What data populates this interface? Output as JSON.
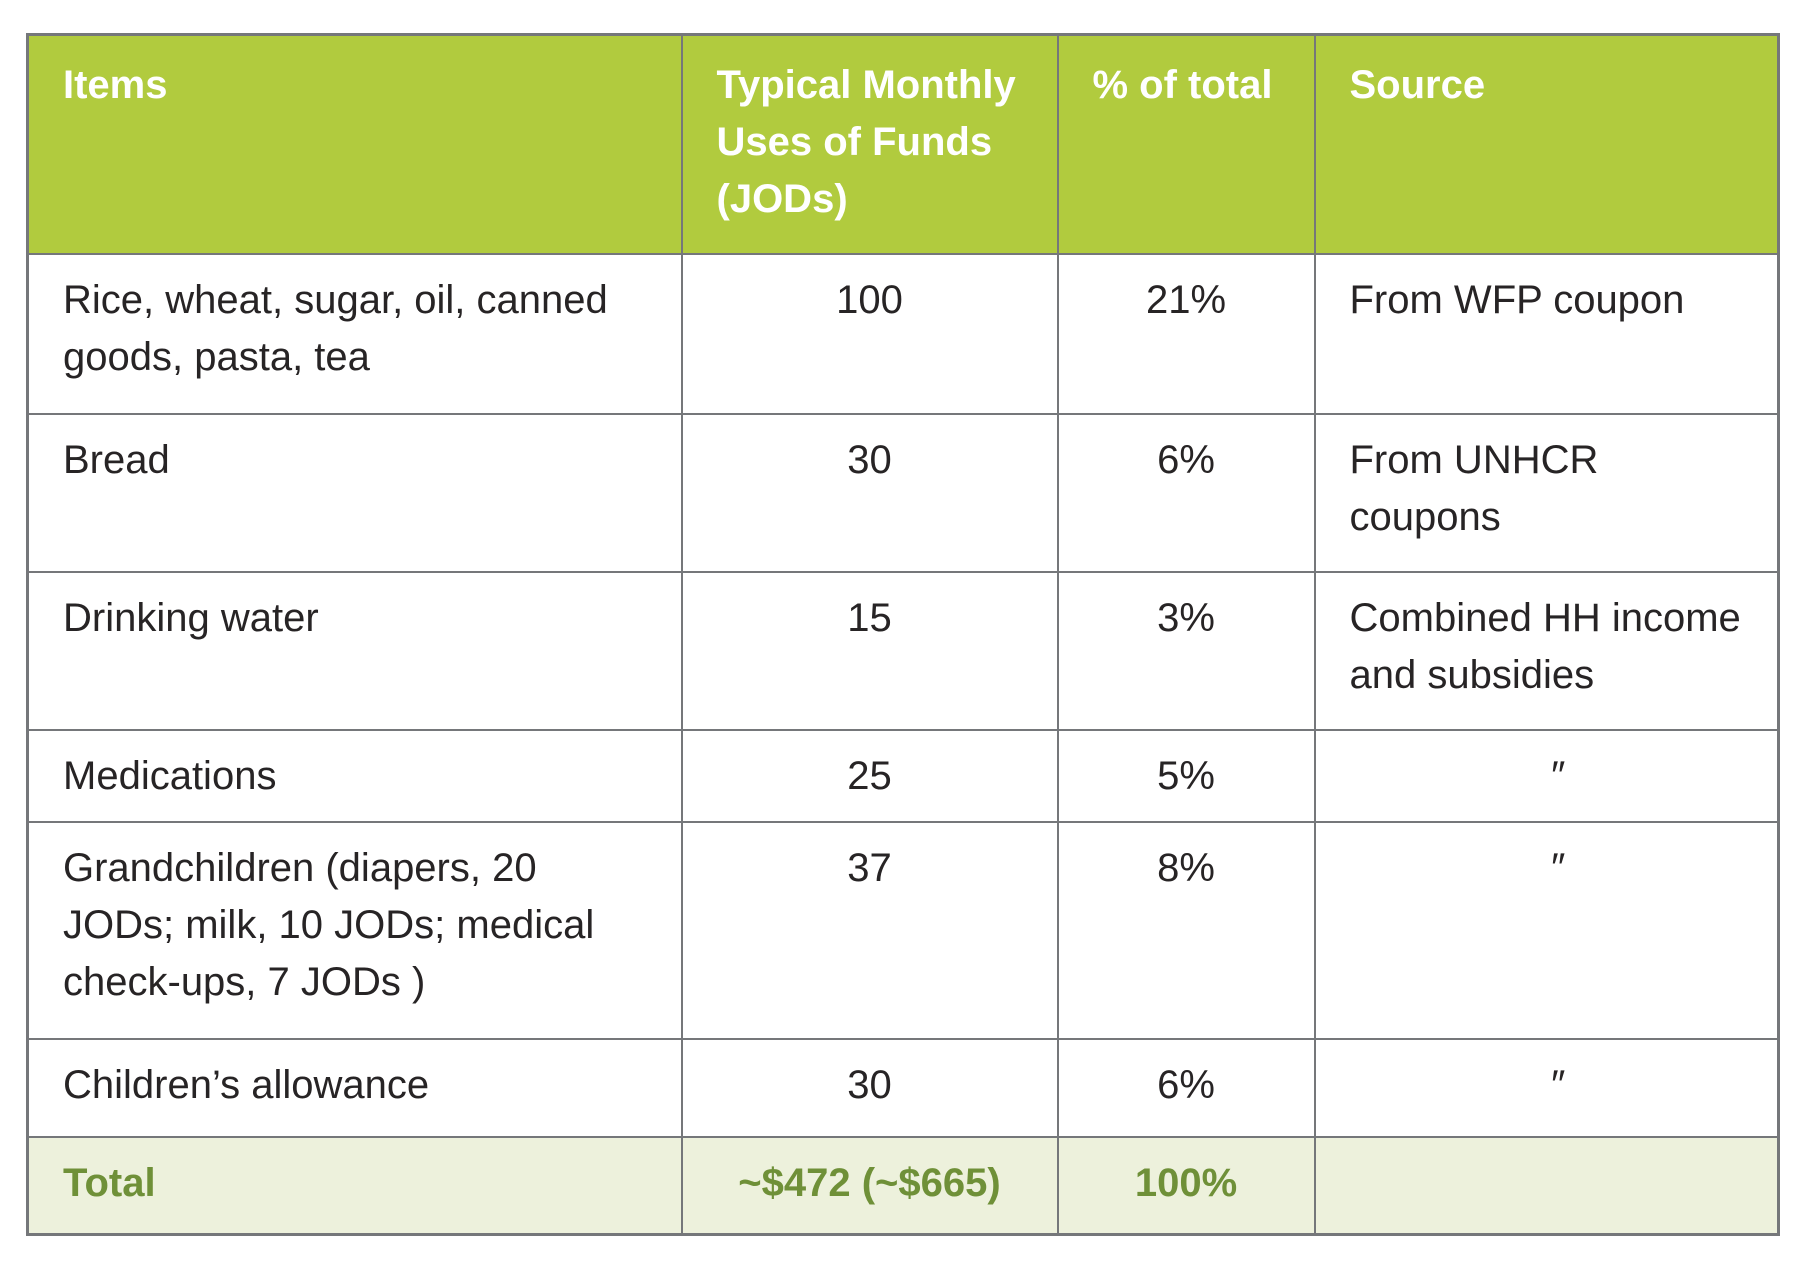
{
  "table": {
    "columns": [
      {
        "label": "Items"
      },
      {
        "label": "Typical Monthly\nUses of Funds\n(JODs)"
      },
      {
        "label": "% of total"
      },
      {
        "label": "Source"
      }
    ],
    "rows": [
      {
        "item": "Rice, wheat, sugar, oil, canned\ngoods, pasta, tea",
        "amount": "100",
        "percent": "21%",
        "source": "From WFP coupon"
      },
      {
        "item": "Bread",
        "amount": "30",
        "percent": "6%",
        "source": "From UNHCR\ncoupons"
      },
      {
        "item": "Drinking water",
        "amount": "15",
        "percent": "3%",
        "source": "Combined HH income\nand subsidies"
      },
      {
        "item": "Medications",
        "amount": "25",
        "percent": "5%",
        "source": "″"
      },
      {
        "item": "Grandchildren (diapers, 20\nJODs; milk, 10 JODs; medical\ncheck-ups, 7 JODs )",
        "amount": "37",
        "percent": "8%",
        "source": "″"
      },
      {
        "item": "Children’s allowance",
        "amount": "30",
        "percent": "6%",
        "source": "″"
      }
    ],
    "total": {
      "label": "Total",
      "amount": "~$472 (~$665)",
      "percent": "100%",
      "source": ""
    }
  },
  "colors": {
    "header_green": "#b1cb3e",
    "total_bg": "#edf1dc",
    "total_text": "#6f9038",
    "border_gray": "#75777a",
    "text_dark": "#272425",
    "header_text": "#ffffff",
    "page_bg": "#ffffff"
  }
}
